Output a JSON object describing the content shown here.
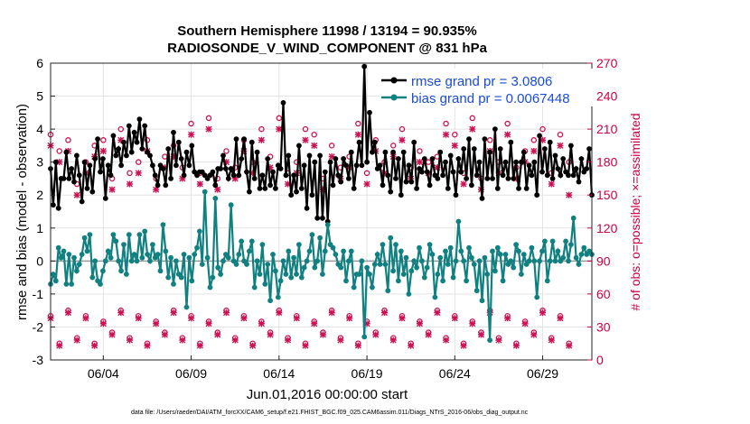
{
  "chart_data": {
    "type": "line",
    "title": "Southern Hemisphere 11998 / 13194 = 90.935%",
    "subtitle": "RADIOSONDE_V_WIND_COMPONENT @ 831 hPa",
    "xlabel": "Jun.01,2016 00:00:00 start",
    "ylabel": "rmse and bias (model - observation)",
    "ylabel_right": "# of obs: o=possible; ×=assimilated",
    "footnote": "data file: /Users/raeder/DAI/ATM_forcXX/CAM6_setup/f.e21.FHIST_BGC.f09_025.CAM6assim.011/Diags_NTrS_2016-06/obs_diag_output.nc",
    "x_range": [
      1,
      31.8
    ],
    "ylim": [
      -3,
      6
    ],
    "ylim_right": [
      0,
      270
    ],
    "x_ticks": [
      {
        "pos": 4,
        "label": "06/04"
      },
      {
        "pos": 9,
        "label": "06/09"
      },
      {
        "pos": 14,
        "label": "06/14"
      },
      {
        "pos": 19,
        "label": "06/19"
      },
      {
        "pos": 24,
        "label": "06/24"
      },
      {
        "pos": 29,
        "label": "06/29"
      }
    ],
    "y_ticks": [
      -3,
      -2,
      -1,
      0,
      1,
      2,
      3,
      4,
      5,
      6
    ],
    "y_ticks_right": [
      0,
      30,
      60,
      90,
      120,
      150,
      180,
      210,
      240,
      270
    ],
    "grid": true,
    "legend_position": "top-right",
    "series": [
      {
        "name": "rmse grand pr = 3.0806",
        "color": "#000000",
        "axis": "left",
        "values": [
          2.8,
          1.7,
          3.0,
          1.6,
          2.5,
          2.5,
          3.3,
          2.5,
          2.8,
          2.4,
          3.2,
          2.6,
          1.8,
          3.0,
          2.2,
          2.9,
          2.1,
          3.1,
          3.7,
          2.7,
          3.1,
          1.9,
          2.9,
          2.6,
          3.8,
          3.2,
          3.4,
          2.9,
          3.6,
          3.2,
          4.1,
          3.3,
          3.9,
          3.6,
          4.3,
          3.4,
          4.1,
          3.3,
          3.2,
          2.9,
          2.6,
          2.3,
          2.9,
          2.8,
          2.3,
          3.4,
          2.5,
          3.9,
          2.9,
          3.6,
          3.1,
          2.6,
          3.3,
          2.9,
          3.5,
          2.7,
          2.6,
          2.7,
          2.7,
          2.6,
          2.5,
          2.6,
          2.7,
          2.3,
          2.8,
          2.8,
          3.2,
          2.8,
          2.5,
          2.8,
          2.6,
          3.7,
          2.6,
          3.1,
          3.7,
          2.7,
          2.1,
          3.6,
          2.5,
          3.3,
          2.2,
          2.6,
          2.2,
          3.1,
          2.3,
          2.7,
          2.2,
          2.9,
          2.8,
          4.8,
          2.6,
          3.2,
          2.0,
          2.6,
          2.1,
          3.5,
          2.2,
          2.9,
          1.6,
          3.2,
          2.0,
          3.0,
          1.3,
          3.2,
          1.3,
          2.7,
          1.2,
          3.0,
          2.3,
          3.1,
          2.6,
          2.4,
          3.1,
          2.9,
          2.5,
          3.3,
          2.2,
          2.9,
          3.6,
          2.9,
          5.9,
          3.0,
          4.5,
          3.3,
          3.6,
          2.8,
          2.9,
          2.3,
          3.3,
          2.6,
          2.1,
          3.3,
          2.5,
          3.1,
          2.0,
          3.3,
          2.4,
          2.9,
          2.4,
          3.6,
          2.2,
          2.8,
          2.7,
          3.1,
          2.7,
          2.3,
          3.1,
          2.6,
          2.5,
          3.3,
          2.6,
          3.0,
          2.2,
          3.2,
          2.7,
          2.0,
          3.1,
          2.7,
          3.4,
          2.5,
          3.7,
          2.3,
          3.4,
          2.6,
          3.0,
          1.9,
          3.7,
          2.5,
          3.3,
          2.5,
          4.0,
          2.2,
          3.4,
          2.6,
          3.0,
          2.5,
          3.6,
          2.5,
          3.0,
          2.2,
          3.0,
          3.3,
          2.2,
          2.9,
          2.6,
          3.0,
          2.0,
          3.8,
          2.7,
          3.4,
          2.6,
          3.6,
          2.5,
          3.2,
          2.8,
          2.6,
          3.1,
          2.7,
          2.6,
          3.5,
          2.6,
          2.8,
          2.4,
          3.1,
          2.7,
          2.8,
          3.4,
          2.0
        ]
      },
      {
        "name": "bias grand pr = 0.0067448",
        "color": "#108080",
        "axis": "left",
        "values": [
          -0.7,
          -0.4,
          -0.6,
          0.4,
          0.1,
          0.3,
          -0.7,
          0.2,
          -0.7,
          0.1,
          -0.3,
          -0.1,
          0.2,
          0.7,
          0.3,
          0.8,
          -0.5,
          0.0,
          -0.6,
          -0.7,
          -0.3,
          0.0,
          0.3,
          0.1,
          0.8,
          0.6,
          0.0,
          -0.3,
          0.5,
          -0.4,
          0.8,
          0.0,
          0.2,
          0.0,
          0.8,
          0.1,
          0.9,
          0.2,
          0.0,
          0.5,
          0.1,
          0.2,
          -0.3,
          1.1,
          0.3,
          -0.5,
          0.1,
          -0.7,
          0.0,
          -0.4,
          -0.5,
          0.2,
          -1.4,
          0.1,
          -0.6,
          0.2,
          0.4,
          0.9,
          -0.1,
          2.1,
          0.1,
          -0.8,
          -0.5,
          1.9,
          -0.2,
          -0.4,
          0.0,
          0.2,
          0.1,
          1.7,
          0.0,
          -0.1,
          0.2,
          0.6,
          0.0,
          -0.1,
          0.3,
          0.6,
          -0.8,
          0.0,
          -0.4,
          0.5,
          -0.7,
          -0.1,
          -1.2,
          0.2,
          -0.3,
          -1.1,
          -0.6,
          0.0,
          -0.4,
          0.3,
          -0.5,
          0.1,
          -0.4,
          0.5,
          -0.5,
          -0.2,
          0.0,
          0.3,
          0.8,
          -0.2,
          0.0,
          0.7,
          -0.4,
          0.3,
          1.1,
          0.5,
          0.4,
          0.2,
          -0.1,
          -0.2,
          0.3,
          -0.6,
          0.0,
          0.3,
          -0.8,
          -0.4,
          -0.4,
          0.0,
          -2.3,
          -0.2,
          -0.4,
          -0.8,
          -0.1,
          0.2,
          -0.1,
          0.5,
          -0.1,
          -0.9,
          0.7,
          -0.3,
          0.5,
          -0.6,
          0.3,
          -0.4,
          0.1,
          -1.0,
          -0.3,
          0.0,
          -0.2,
          0.4,
          0.0,
          -0.5,
          -0.2,
          0.5,
          0.2,
          -1.1,
          -0.4,
          0.1,
          -0.6,
          0.3,
          -0.1,
          0.4,
          -0.5,
          0.0,
          1.2,
          0.3,
          0.0,
          -0.6,
          0.4,
          0.1,
          -0.1,
          -0.9,
          0.0,
          -1.2,
          0.1,
          -0.4,
          -2.4,
          0.3,
          -0.3,
          0.4,
          0.2,
          -0.6,
          0.2,
          -0.1,
          0.0,
          -0.2,
          0.5,
          0.3,
          -0.4,
          0.2,
          -0.1,
          0.0,
          0.4,
          0.0,
          -1.1,
          0.0,
          0.3,
          0.6,
          -0.6,
          0.0,
          0.6,
          0.0,
          0.3,
          0.0,
          0.1,
          0.6,
          0.0,
          0.5,
          1.3,
          0.1,
          -0.1,
          0.2,
          0.4,
          0.2,
          0.3,
          0.2
        ]
      },
      {
        "name": "possible obs (upper)",
        "color": "#cc1155",
        "axis": "right",
        "marker": "o",
        "values": [
          205,
          190,
          200,
          160,
          180,
          195,
          200,
          165,
          210,
          170,
          180,
          200,
          165,
          185,
          195,
          175,
          215,
          170,
          220,
          165,
          190,
          175,
          200,
          180,
          210,
          185,
          220,
          170,
          180,
          210,
          205,
          165,
          195,
          175,
          185,
          215,
          170,
          200,
          180,
          195,
          210,
          175,
          190,
          180,
          185,
          215,
          205,
          170,
          220,
          165,
          200,
          180,
          215,
          175,
          190,
          200,
          210,
          170,
          205,
          180
        ]
      },
      {
        "name": "assimilated obs (upper)",
        "color": "#cc1155",
        "axis": "right",
        "marker": "x",
        "values": [
          195,
          180,
          190,
          150,
          170,
          185,
          190,
          155,
          200,
          160,
          170,
          190,
          155,
          175,
          185,
          165,
          205,
          160,
          210,
          155,
          180,
          165,
          190,
          170,
          200,
          175,
          210,
          160,
          170,
          200,
          195,
          155,
          185,
          165,
          175,
          205,
          160,
          190,
          170,
          185,
          200,
          165,
          180,
          170,
          175,
          205,
          195,
          160,
          210,
          155,
          190,
          170,
          205,
          165,
          180,
          190,
          200,
          160,
          195,
          150
        ]
      },
      {
        "name": "possible obs (lower)",
        "color": "#cc1155",
        "axis": "right",
        "marker": "o",
        "values": [
          40,
          15,
          45,
          20,
          40,
          15,
          35,
          25,
          45,
          20,
          40,
          15,
          35,
          25,
          45,
          20,
          40,
          15,
          35,
          25,
          45,
          20,
          40,
          15,
          35,
          25,
          45,
          20,
          40,
          15,
          35,
          25,
          45,
          20,
          40,
          15,
          35,
          25,
          45,
          20,
          40,
          15,
          35,
          25,
          45,
          20,
          40,
          15,
          35,
          25,
          45,
          20,
          40,
          15,
          35,
          25,
          45,
          20,
          40,
          15
        ]
      },
      {
        "name": "assimilated obs (lower)",
        "color": "#cc1155",
        "axis": "right",
        "marker": "x",
        "values": [
          38,
          13,
          43,
          18,
          38,
          13,
          33,
          23,
          43,
          18,
          38,
          13,
          33,
          23,
          43,
          18,
          38,
          13,
          33,
          23,
          43,
          18,
          38,
          13,
          33,
          23,
          43,
          18,
          38,
          13,
          33,
          23,
          43,
          18,
          38,
          13,
          33,
          23,
          43,
          18,
          38,
          13,
          33,
          23,
          43,
          18,
          38,
          13,
          33,
          23,
          43,
          18,
          38,
          13,
          33,
          23,
          43,
          18,
          38,
          13
        ]
      }
    ]
  }
}
